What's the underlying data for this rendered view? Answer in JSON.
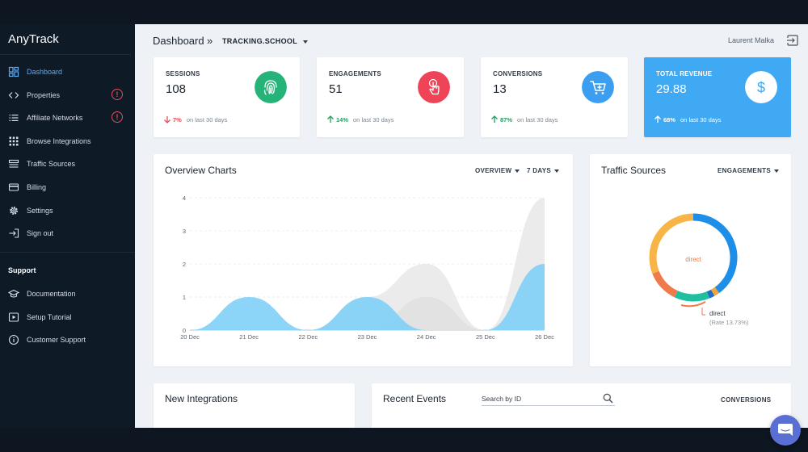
{
  "app": {
    "brand": "AnyTrack"
  },
  "sidebar": {
    "items": [
      {
        "label": "Dashboard",
        "icon": "dashboard-icon",
        "active": true,
        "alert": false
      },
      {
        "label": "Properties",
        "icon": "code-icon",
        "active": false,
        "alert": true
      },
      {
        "label": "Affiliate Networks",
        "icon": "list-icon",
        "active": false,
        "alert": true
      },
      {
        "label": "Browse Integrations",
        "icon": "grid-icon",
        "active": false,
        "alert": false
      },
      {
        "label": "Traffic Sources",
        "icon": "traffic-icon",
        "active": false,
        "alert": false
      },
      {
        "label": "Billing",
        "icon": "credit-card-icon",
        "active": false,
        "alert": false
      },
      {
        "label": "Settings",
        "icon": "gear-icon",
        "active": false,
        "alert": false
      },
      {
        "label": "Sign out",
        "icon": "sign-out-icon",
        "active": false,
        "alert": false
      }
    ],
    "alert_glyph": "!",
    "support_title": "Support",
    "support_items": [
      {
        "label": "Documentation",
        "icon": "graduation-cap-icon"
      },
      {
        "label": "Setup Tutorial",
        "icon": "video-icon"
      },
      {
        "label": "Customer Support",
        "icon": "info-icon"
      }
    ]
  },
  "header": {
    "title": "Dashboard",
    "separator": "»",
    "project": "TRACKING.SCHOOL",
    "user": "Laurent Malka"
  },
  "stats": [
    {
      "label": "SESSIONS",
      "value": "108",
      "delta": "7%",
      "delta_text": "on last 30 days",
      "direction": "down",
      "icon": "fingerprint-icon",
      "color": "#26b37a"
    },
    {
      "label": "ENGAGEMENTS",
      "value": "51",
      "delta": "14%",
      "delta_text": "on last 30 days",
      "direction": "up",
      "icon": "touch-icon",
      "color": "#ef4457"
    },
    {
      "label": "CONVERSIONS",
      "value": "13",
      "delta": "87%",
      "delta_text": "on last 30 days",
      "direction": "up",
      "icon": "cart-icon",
      "color": "#3b9ef1"
    },
    {
      "label": "TOTAL REVENUE",
      "value": "29.88",
      "delta": "68%",
      "delta_text": "on last 30 days",
      "direction": "up",
      "icon": "dollar-icon",
      "color": "#40a9f3"
    }
  ],
  "overview": {
    "title": "Overview Charts",
    "dropdown_view": "OVERVIEW",
    "dropdown_range": "7 DAYS"
  },
  "chart_data": {
    "type": "area",
    "categories": [
      "20 Dec",
      "21 Dec",
      "22 Dec",
      "23 Dec",
      "24 Dec",
      "25 Dec",
      "26 Dec"
    ],
    "series": [
      {
        "values": [
          0,
          1,
          0,
          1,
          0,
          0,
          2
        ],
        "color": "#7fd0f7"
      },
      {
        "values": [
          0,
          0,
          0,
          1,
          2,
          0,
          4
        ],
        "color": "#e7e7e9"
      },
      {
        "values": [
          0,
          0,
          0,
          0,
          1,
          0,
          0
        ],
        "color": "#e0e0e2"
      }
    ],
    "yticks": [
      0,
      1,
      2,
      3,
      4
    ],
    "ylim": [
      0,
      4
    ],
    "grid": true
  },
  "traffic": {
    "title": "Traffic Sources",
    "dropdown": "ENGAGEMENTS",
    "center_label": "direct",
    "callout_label": "direct",
    "callout_rate": "(Rate 13.73%)",
    "segments": [
      {
        "fraction": 0.4,
        "color": "#1d8fe8"
      },
      {
        "fraction": 0.02,
        "color": "#f2a33b"
      },
      {
        "fraction": 0.02,
        "color": "#1f6fc6"
      },
      {
        "fraction": 0.13,
        "color": "#1fbfa0"
      },
      {
        "fraction": 0.12,
        "color": "#f07a4a"
      },
      {
        "fraction": 0.31,
        "color": "#f7b547"
      }
    ]
  },
  "new_integrations": {
    "title": "New Integrations"
  },
  "recent_events": {
    "title": "Recent Events",
    "search_placeholder": "Search by ID",
    "dropdown": "CONVERSIONS"
  }
}
